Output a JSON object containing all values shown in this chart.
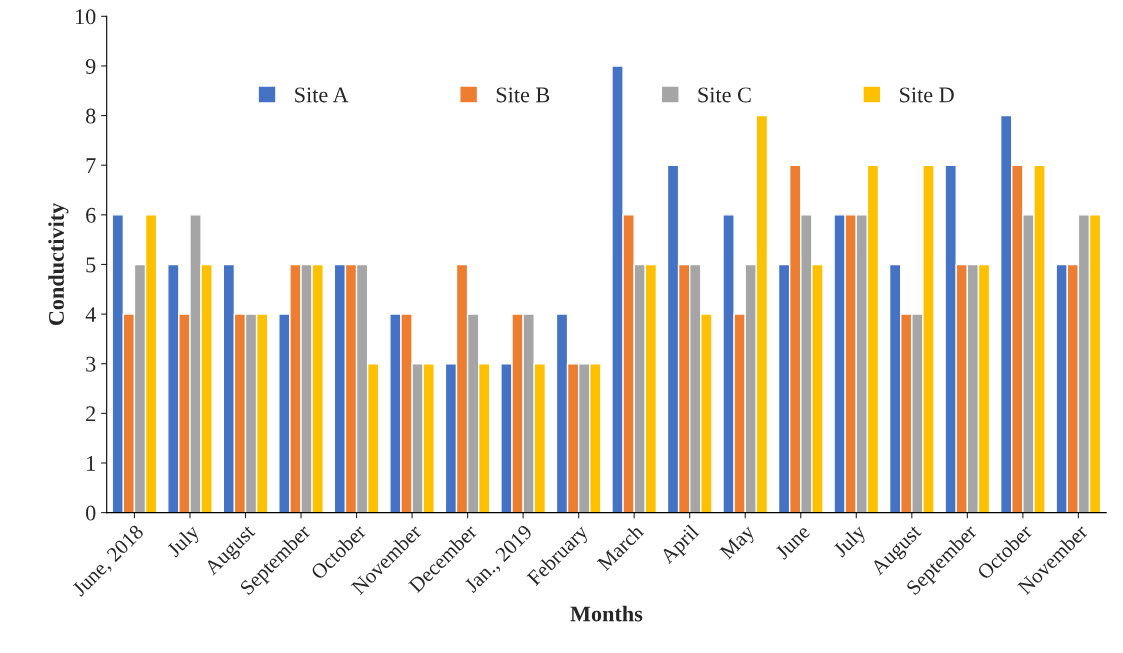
{
  "chart_data": {
    "type": "bar",
    "xlabel": "Months",
    "ylabel": "Conductivity",
    "categories": [
      "June, 2018",
      "July",
      "August",
      "September",
      "October",
      "November",
      "December",
      "Jan., 2019",
      "February",
      "March",
      "April",
      "May",
      "June",
      "July",
      "August",
      "September",
      "October",
      "November"
    ],
    "series": [
      {
        "name": "Site A",
        "color": "#4472c4",
        "values": [
          6,
          5,
          5,
          4,
          5,
          4,
          3,
          3,
          4,
          9,
          7,
          6,
          5,
          6,
          5,
          7,
          8,
          5
        ]
      },
      {
        "name": "Site B",
        "color": "#ed7d31",
        "values": [
          4,
          4,
          4,
          5,
          5,
          4,
          5,
          4,
          3,
          6,
          5,
          4,
          7,
          6,
          4,
          5,
          7,
          5
        ]
      },
      {
        "name": "Site C",
        "color": "#a5a5a5",
        "values": [
          5,
          6,
          4,
          5,
          5,
          3,
          4,
          4,
          3,
          5,
          5,
          5,
          6,
          6,
          4,
          5,
          6,
          6
        ]
      },
      {
        "name": "Site D",
        "color": "#ffc000",
        "values": [
          6,
          5,
          4,
          5,
          3,
          3,
          3,
          3,
          3,
          5,
          4,
          8,
          5,
          7,
          7,
          5,
          7,
          6
        ]
      }
    ],
    "ylim": [
      0,
      10
    ],
    "yticks": [
      0,
      1,
      2,
      3,
      4,
      5,
      6,
      7,
      8,
      9,
      10
    ],
    "grid": false,
    "legend": "top"
  }
}
